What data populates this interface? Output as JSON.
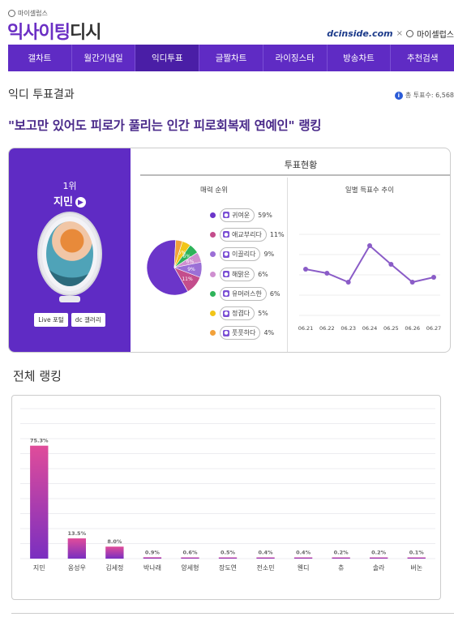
{
  "header": {
    "small_brand": "마이셀럽스",
    "logo_part1": "익사이팅",
    "logo_part2": "디시",
    "partner_dc": "dcinside.com",
    "partner_sep": "×",
    "partner_mycelebs": "마이셀럽스"
  },
  "nav": {
    "tabs": [
      "갤차트",
      "월간기념일",
      "익디투표",
      "글짤차트",
      "라이징스타",
      "방송차트",
      "추천검색"
    ],
    "active_index": 2
  },
  "section_title": "익디 투표결과",
  "total_votes": "총 투표수: 6,568",
  "headline": "\"보고만 있어도 피로가 풀리는 인간 피로회복제 연예인\" 랭킹",
  "winner": {
    "rank": "1위",
    "name": "지민",
    "btn_live": "Live 포털",
    "btn_gallery": "dc 갤러리"
  },
  "status": {
    "title": "투표현황",
    "pie_title": "매력 순위",
    "line_title": "일별 득표수 추이"
  },
  "chart_data": [
    {
      "type": "pie",
      "title": "매력 순위",
      "categories": [
        "귀여운",
        "애교부리다",
        "이끌리다",
        "해맑은",
        "유머러스한",
        "정겹다",
        "풋풋하다"
      ],
      "values": [
        59,
        11,
        9,
        6,
        6,
        5,
        4
      ],
      "slice_labels": [
        "",
        "11%",
        "9%",
        "6%",
        "6%",
        "5%",
        ""
      ],
      "colors": [
        "#6b35c9",
        "#c44d8c",
        "#9b6fd6",
        "#cf8fd0",
        "#2eb35a",
        "#f2c518",
        "#f2a13a"
      ]
    },
    {
      "type": "line",
      "title": "일별 득표수 추이",
      "x": [
        "06.21",
        "06.22",
        "06.23",
        "06.24",
        "06.25",
        "06.26",
        "06.27"
      ],
      "values": [
        57,
        52,
        41,
        86,
        63,
        41,
        47
      ],
      "ylim": [
        0,
        100
      ],
      "color": "#8a5cc7"
    },
    {
      "type": "bar",
      "title": "전체 랭킹",
      "categories": [
        "지민",
        "옹성우",
        "김세정",
        "박나래",
        "양세형",
        "장도연",
        "전소민",
        "웬디",
        "츄",
        "솔라",
        "버논"
      ],
      "values": [
        75.3,
        13.5,
        8.0,
        0.9,
        0.6,
        0.5,
        0.4,
        0.4,
        0.2,
        0.2,
        0.1
      ],
      "labels": [
        "75.3%",
        "13.5%",
        "8.0%",
        "0.9%",
        "0.6%",
        "0.5%",
        "0.4%",
        "0.4%",
        "0.2%",
        "0.2%",
        "0.1%"
      ],
      "ylim": [
        0,
        100
      ],
      "grid": true,
      "color_top": "#e04c9a",
      "color_bottom": "#7a2fc0"
    }
  ],
  "ranking_title": "전체 랭킹"
}
